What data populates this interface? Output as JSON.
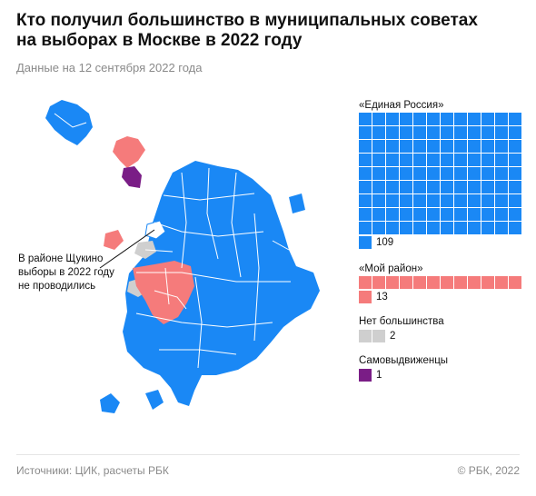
{
  "title": "Кто получил большинство в муниципальных советах\nна выборах в Москве в 2022 году",
  "subtitle": "Данные на 12 сентября 2022 года",
  "annotation": "В районе Щукино выборы в 2022 году не проводились",
  "colors": {
    "united_russia": "#1a88f5",
    "my_district": "#f57b7b",
    "no_majority": "#cfcfcf",
    "self_nominated": "#7a1d86",
    "district_border": "#ffffff"
  },
  "legend": [
    {
      "label": "«Единая Россия»",
      "count": 109,
      "color_key": "united_russia"
    },
    {
      "label": "«Мой район»",
      "count": 13,
      "color_key": "my_district"
    },
    {
      "label": "Нет большинства",
      "count": 2,
      "color_key": "no_majority"
    },
    {
      "label": "Самовыдвиженцы",
      "count": 1,
      "color_key": "self_nominated"
    }
  ],
  "footer": {
    "source": "Источники: ЦИК, расчеты РБК",
    "copyright": "© РБК, 2022"
  }
}
